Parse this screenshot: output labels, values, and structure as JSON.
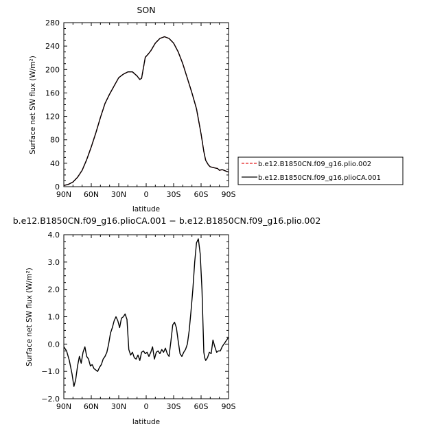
{
  "chart_data": [
    {
      "type": "line",
      "title": "SON",
      "xlabel": "latitude",
      "ylabel": "Surface net SW flux (W/m²)",
      "xlim": [
        90,
        -90
      ],
      "ylim": [
        0,
        280
      ],
      "x_ticks": [
        90,
        60,
        30,
        0,
        -30,
        -60,
        -90
      ],
      "x_tick_labels": [
        "90N",
        "60N",
        "30N",
        "0",
        "30S",
        "60S",
        "90S"
      ],
      "y_ticks": [
        0,
        40,
        80,
        120,
        160,
        200,
        240,
        280
      ],
      "y_tick_labels": [
        "0",
        "40",
        "80",
        "120",
        "160",
        "200",
        "240",
        "280"
      ],
      "x": [
        90,
        85,
        80,
        75,
        70,
        65,
        60,
        55,
        50,
        45,
        40,
        35,
        30,
        25,
        20,
        15,
        10,
        7,
        5,
        3,
        1,
        -2,
        -5,
        -10,
        -15,
        -20,
        -25,
        -30,
        -35,
        -40,
        -45,
        -50,
        -55,
        -60,
        -63,
        -65,
        -68,
        -70,
        -75,
        -78,
        -80,
        -83,
        -85,
        -88,
        -90
      ],
      "series": [
        {
          "name": "b.e12.B1850CN.f09_g16.plio.002",
          "color": "#e31a1c",
          "dash": true,
          "values": [
            2,
            4,
            8,
            16,
            28,
            46,
            68,
            92,
            118,
            142,
            158,
            172,
            186,
            192,
            196,
            196,
            189,
            183,
            185,
            203,
            221,
            226,
            232,
            245,
            253,
            256,
            253,
            245,
            230,
            210,
            185,
            160,
            133,
            90,
            60,
            45,
            37,
            34,
            32,
            31,
            28,
            29,
            28,
            26,
            25
          ]
        },
        {
          "name": "b.e12.B1850CN.f09_g16.plioCA.001",
          "color": "#000000",
          "dash": false,
          "values": [
            2,
            4,
            8,
            16,
            28,
            46,
            68,
            92,
            118,
            142,
            158,
            172,
            186,
            192,
            196,
            196,
            189,
            183,
            185,
            203,
            221,
            226,
            232,
            245,
            253,
            256,
            253,
            245,
            230,
            210,
            185,
            160,
            133,
            90,
            60,
            45,
            37,
            34,
            32,
            31,
            28,
            29,
            28,
            26,
            25
          ]
        }
      ]
    },
    {
      "type": "line",
      "title": "b.e12.B1850CN.f09_g16.plioCA.001 − b.e12.B1850CN.f09_g16.plio.002",
      "xlabel": "latitude",
      "ylabel": "Surface net SW flux (W/m²)",
      "xlim": [
        90,
        -90
      ],
      "ylim": [
        -2.0,
        4.0
      ],
      "x_ticks": [
        90,
        60,
        30,
        0,
        -30,
        -60,
        -90
      ],
      "x_tick_labels": [
        "90N",
        "60N",
        "30N",
        "0",
        "30S",
        "60S",
        "90S"
      ],
      "y_ticks": [
        -2.0,
        -1.0,
        0.0,
        1.0,
        2.0,
        3.0,
        4.0
      ],
      "y_tick_labels": [
        "−2.0",
        "−1.0",
        "0.0",
        "1.0",
        "2.0",
        "3.0",
        "4.0"
      ],
      "x": [
        90,
        87,
        84,
        81,
        79,
        77,
        75,
        73,
        71,
        69,
        67,
        65,
        63,
        61,
        59,
        57,
        55,
        53,
        51,
        49,
        47,
        45,
        43,
        41,
        39,
        37,
        35,
        33,
        31,
        29,
        27,
        25,
        23,
        21,
        19,
        17,
        15,
        13,
        11,
        9,
        7,
        5,
        3,
        1,
        -1,
        -3,
        -5,
        -7,
        -9,
        -11,
        -13,
        -15,
        -17,
        -19,
        -21,
        -23,
        -25,
        -27,
        -29,
        -31,
        -33,
        -35,
        -37,
        -39,
        -41,
        -43,
        -45,
        -47,
        -49,
        -51,
        -53,
        -55,
        -57,
        -59,
        -61,
        -62,
        -63,
        -64,
        -65,
        -67,
        -69,
        -71,
        -73,
        -75,
        -77,
        -79,
        -81,
        -83,
        -85,
        -87,
        -89,
        -90
      ],
      "series": [
        {
          "name": "",
          "color": "#000000",
          "dash": false,
          "values": [
            -0.1,
            -0.25,
            -0.6,
            -1.1,
            -1.55,
            -1.3,
            -0.8,
            -0.45,
            -0.7,
            -0.3,
            -0.1,
            -0.45,
            -0.55,
            -0.8,
            -0.75,
            -0.9,
            -0.95,
            -1.0,
            -0.85,
            -0.75,
            -0.55,
            -0.45,
            -0.3,
            0.0,
            0.4,
            0.6,
            0.85,
            1.0,
            0.85,
            0.6,
            0.95,
            1.0,
            1.1,
            0.9,
            -0.2,
            -0.4,
            -0.3,
            -0.5,
            -0.55,
            -0.4,
            -0.6,
            -0.3,
            -0.25,
            -0.35,
            -0.3,
            -0.45,
            -0.3,
            -0.1,
            -0.55,
            -0.3,
            -0.25,
            -0.35,
            -0.2,
            -0.3,
            -0.15,
            -0.35,
            -0.45,
            0.1,
            0.7,
            0.8,
            0.6,
            0.1,
            -0.35,
            -0.45,
            -0.3,
            -0.2,
            0.0,
            0.5,
            1.2,
            2.0,
            3.0,
            3.7,
            3.85,
            3.3,
            2.0,
            0.8,
            -0.3,
            -0.5,
            -0.6,
            -0.5,
            -0.3,
            -0.35,
            0.15,
            -0.1,
            -0.3,
            -0.25,
            -0.25,
            -0.1,
            0.0,
            0.1,
            0.2,
            0.25
          ]
        }
      ]
    }
  ]
}
